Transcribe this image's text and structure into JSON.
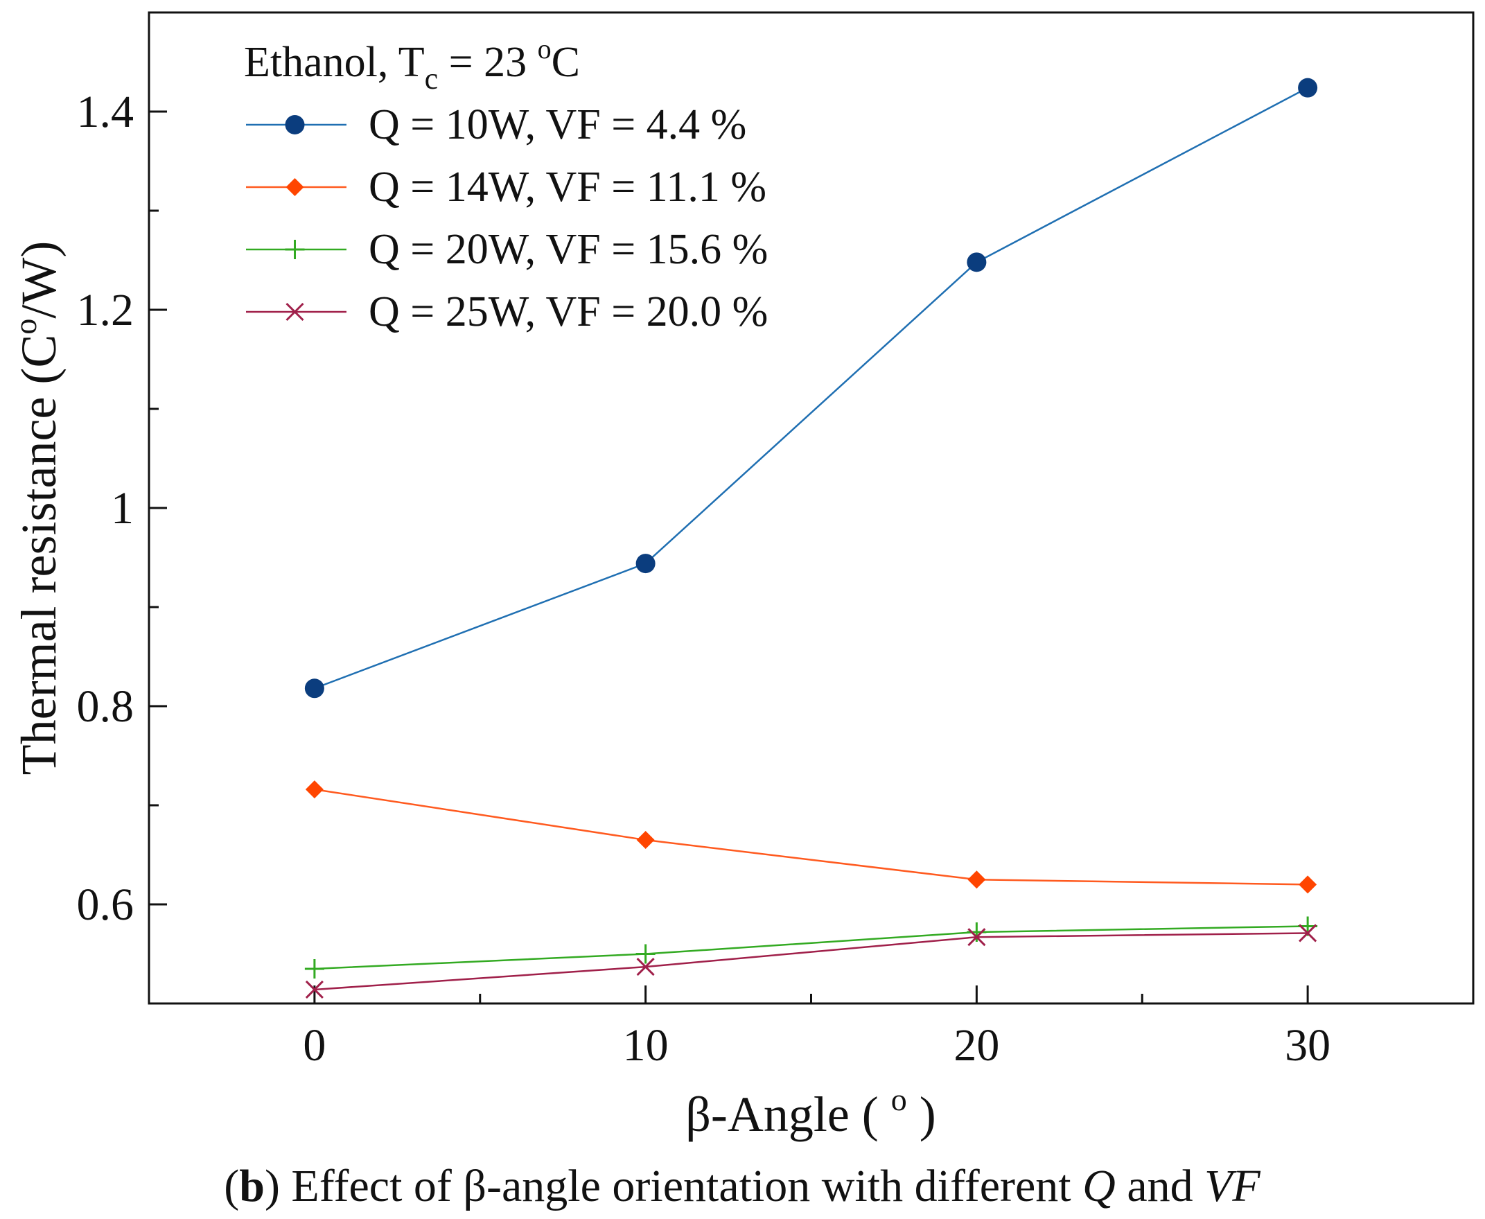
{
  "chart_data": {
    "type": "line",
    "title": "",
    "xlabel": "β-Angle ( º )",
    "xlabel_parts": {
      "main": "β-Angle ( ",
      "sup": "o",
      "end": " )"
    },
    "ylabel": "Thermal resistance (Cº/W)",
    "ylabel_parts": {
      "main": "Thermal resistance (C",
      "sup": "o",
      "end": "/W)"
    },
    "xlim": [
      -5,
      35
    ],
    "ylim": [
      0.5,
      1.5
    ],
    "x": [
      0,
      10,
      20,
      30
    ],
    "x_ticks": [
      0,
      10,
      20,
      30
    ],
    "x_tick_labels": [
      "0",
      "10",
      "20",
      "30"
    ],
    "x_minor_ticks": [
      5,
      15,
      25
    ],
    "y_ticks": [
      0.6,
      0.8,
      1.0,
      1.2,
      1.4
    ],
    "y_tick_labels": [
      "0.6",
      "0.8",
      "1",
      "1.2",
      "1.4"
    ],
    "y_minor_ticks": [
      0.7,
      0.9,
      1.1,
      1.3
    ],
    "grid": false,
    "legend_position": "top-left",
    "legend_title": {
      "main": "Ethanol, T",
      "sub": "c",
      "rest": " = 23 ",
      "sup": "o",
      "end": "C"
    },
    "series": [
      {
        "name": "Q = 10W, VF = 4.4 %",
        "values": [
          0.818,
          0.944,
          1.248,
          1.424
        ],
        "color": "#1f6fb2",
        "marker": "circle",
        "marker_color": "#0b3d7e"
      },
      {
        "name": "Q = 14W, VF = 11.1 %",
        "values": [
          0.716,
          0.665,
          0.625,
          0.62
        ],
        "color": "#ff5a1f",
        "marker": "diamond",
        "marker_color": "#ff4500"
      },
      {
        "name": "Q = 20W, VF = 15.6 %",
        "values": [
          0.535,
          0.55,
          0.572,
          0.578
        ],
        "color": "#33aa22",
        "marker": "plus",
        "marker_color": "#33aa22"
      },
      {
        "name": "Q = 25W, VF = 20.0 %",
        "values": [
          0.514,
          0.537,
          0.567,
          0.571
        ],
        "color": "#a0204a",
        "marker": "cross",
        "marker_color": "#a0204a"
      }
    ],
    "caption": {
      "open": "(",
      "bold": "b",
      "mid": ") Effect of β-angle orientation with different ",
      "q": "Q",
      "and": " and ",
      "vf": "VF"
    }
  }
}
